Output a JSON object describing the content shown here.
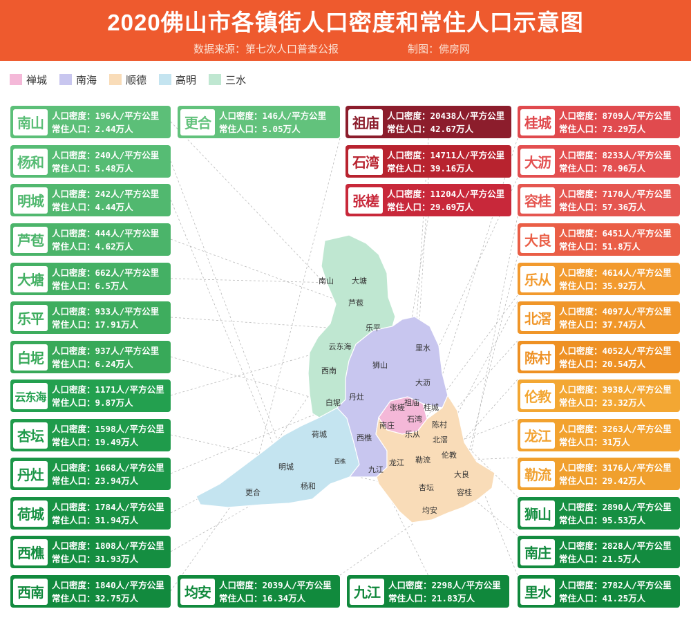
{
  "header": {
    "title": "2020佛山市各镇街人口密度和常住人口示意图",
    "source": "数据来源：第七次人口普查公报",
    "maker": "制图：佛房网"
  },
  "legend": [
    {
      "label": "禅城",
      "color": "#f4b8d8"
    },
    {
      "label": "南海",
      "color": "#c8c6ef"
    },
    {
      "label": "顺德",
      "color": "#f9dcb8"
    },
    {
      "label": "高明",
      "color": "#c4e4f0"
    },
    {
      "label": "三水",
      "color": "#bfe7d1"
    }
  ],
  "density_prefix": "人口密度：",
  "density_unit": "人/平方公里",
  "pop_prefix": "常住人口：",
  "pop_unit": "万人",
  "towns": [
    {
      "name": "南山",
      "density": "196",
      "population": "2.44",
      "color": "#5cbf78"
    },
    {
      "name": "杨和",
      "density": "240",
      "population": "5.48",
      "color": "#56bc74"
    },
    {
      "name": "明城",
      "density": "242",
      "population": "4.44",
      "color": "#51b86f"
    },
    {
      "name": "芦苞",
      "density": "444",
      "population": "4.62",
      "color": "#4bb46a"
    },
    {
      "name": "大塘",
      "density": "662",
      "population": "6.5",
      "color": "#44b064"
    },
    {
      "name": "乐平",
      "density": "933",
      "population": "17.91",
      "color": "#3ead5e"
    },
    {
      "name": "白坭",
      "density": "937",
      "population": "6.24",
      "color": "#38a959"
    },
    {
      "name": "云东海",
      "density": "1171",
      "population": "9.87",
      "color": "#23a04f"
    },
    {
      "name": "杏坛",
      "density": "1598",
      "population": "19.49",
      "color": "#1f9b4b"
    },
    {
      "name": "丹灶",
      "density": "1668",
      "population": "23.94",
      "color": "#1b9647"
    },
    {
      "name": "荷城",
      "density": "1784",
      "population": "31.94",
      "color": "#189244"
    },
    {
      "name": "西樵",
      "density": "1808",
      "population": "31.93",
      "color": "#158e41"
    },
    {
      "name": "西南",
      "density": "1840",
      "population": "32.75",
      "color": "#128a3e"
    },
    {
      "name": "更合",
      "density": "146",
      "population": "5.05",
      "color": "#62c27c"
    },
    {
      "name": "均安",
      "density": "2039",
      "population": "16.34",
      "color": "#118a3d"
    },
    {
      "name": "九江",
      "density": "2298",
      "population": "21.83",
      "color": "#10883c"
    },
    {
      "name": "祖庙",
      "density": "20438",
      "population": "42.67",
      "color": "#8c1d2c"
    },
    {
      "name": "石湾",
      "density": "14711",
      "population": "39.16",
      "color": "#b8232f"
    },
    {
      "name": "张槎",
      "density": "11204",
      "population": "29.69",
      "color": "#c8283a"
    },
    {
      "name": "桂城",
      "density": "8709",
      "population": "73.29",
      "color": "#e04a4e"
    },
    {
      "name": "大沥",
      "density": "8233",
      "population": "78.96",
      "color": "#e34f50"
    },
    {
      "name": "容桂",
      "density": "7170",
      "population": "57.36",
      "color": "#e55650"
    },
    {
      "name": "大良",
      "density": "6451",
      "population": "51.8",
      "color": "#ea5e46"
    },
    {
      "name": "乐从",
      "density": "4614",
      "population": "35.92",
      "color": "#f29a2e"
    },
    {
      "name": "北滘",
      "density": "4097",
      "population": "37.74",
      "color": "#f09629"
    },
    {
      "name": "陈村",
      "density": "4052",
      "population": "20.54",
      "color": "#ee9124"
    },
    {
      "name": "伦教",
      "density": "3938",
      "population": "23.32",
      "color": "#f3a733"
    },
    {
      "name": "龙江",
      "density": "3263",
      "population": "31",
      "color": "#f2a22f"
    },
    {
      "name": "勒流",
      "density": "3176",
      "population": "29.42",
      "color": "#f0a02e"
    },
    {
      "name": "狮山",
      "density": "2890",
      "population": "95.53",
      "color": "#168f42"
    },
    {
      "name": "南庄",
      "density": "2828",
      "population": "21.5",
      "color": "#138b3f"
    },
    {
      "name": "里水",
      "density": "2782",
      "population": "41.25",
      "color": "#10883c"
    }
  ],
  "map_labels": [
    "南山",
    "大塘",
    "芦苞",
    "乐平",
    "云东海",
    "西南",
    "白坭",
    "狮山",
    "里水",
    "大沥",
    "丹灶",
    "祖庙",
    "桂城",
    "张槎",
    "石湾",
    "南庄",
    "乐从",
    "陈村",
    "北滘",
    "荷城",
    "西樵",
    "龙江",
    "勒流",
    "伦教",
    "明城",
    "杨和",
    "九江",
    "大良",
    "杏坛",
    "容桂",
    "更合",
    "均安",
    "西樵"
  ],
  "watermark": "佛房网"
}
